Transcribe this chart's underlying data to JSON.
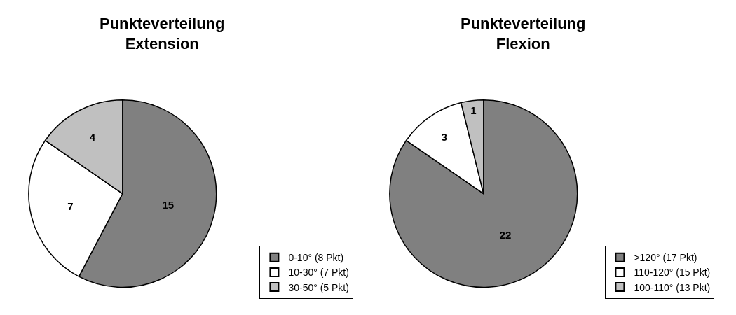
{
  "chart_data": [
    {
      "type": "pie",
      "title": "Punkteverteilung\nExtension",
      "categories": [
        "0-10° (8 Pkt)",
        "10-30° (7 Pkt)",
        "30-50° (5 Pkt)"
      ],
      "values": [
        15,
        7,
        4
      ],
      "colors": [
        "#808080",
        "#ffffff",
        "#c0c0c0"
      ],
      "data_labels": true,
      "legend": "bottom right"
    },
    {
      "type": "pie",
      "title": "Punkteverteilung\nFlexion",
      "categories": [
        ">120° (17 Pkt)",
        "110-120° (15 Pkt)",
        "100-110° (13 Pkt)"
      ],
      "values": [
        22,
        3,
        1
      ],
      "colors": [
        "#808080",
        "#ffffff",
        "#c0c0c0"
      ],
      "data_labels": true,
      "legend": "bottom right"
    }
  ]
}
